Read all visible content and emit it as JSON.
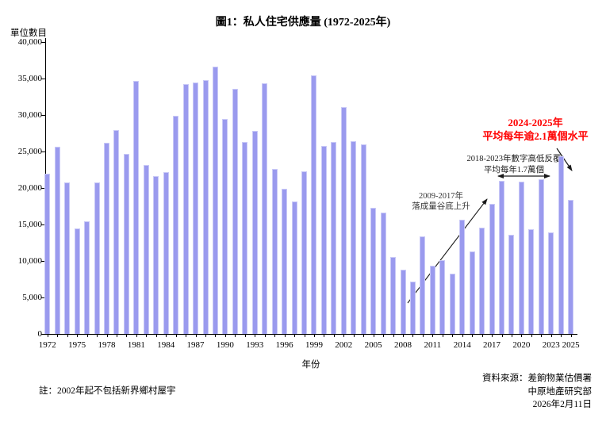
{
  "title": "圖1：私人住宅供應量 (1972-2025年)",
  "y_axis": {
    "label": "單位數目",
    "step": 5000,
    "tick_labels": [
      "0",
      "5,000",
      "10,000",
      "15,000",
      "20,000",
      "25,000",
      "30,000",
      "35,000",
      "40,000"
    ]
  },
  "x_axis": {
    "label": "年份",
    "tick_years": [
      1972,
      1975,
      1978,
      1981,
      1984,
      1987,
      1990,
      1993,
      1996,
      1999,
      2002,
      2005,
      2008,
      2011,
      2014,
      2017,
      2020,
      2023,
      2025
    ]
  },
  "note": "註：2002年起不包括新界鄉村屋宇",
  "source": {
    "line1": "資料來源：差餉物業估價署",
    "line2": "中原地產研究部",
    "line3": "2026年2月11日"
  },
  "annotations": {
    "trough": {
      "line1": "2009-2017年",
      "line2": "落成量谷底上升"
    },
    "fluctuate": {
      "line1": "2018-2023年數字高低反覆",
      "line2": "平均每年1.7萬個"
    },
    "recent": {
      "line1": "2024-2025年",
      "line2": "平均每年逾2.1萬個水平",
      "color": "#ff0000"
    }
  },
  "chart_data": {
    "type": "bar",
    "title": "圖1：私人住宅供應量 (1972-2025年)",
    "xlabel": "年份",
    "ylabel": "單位數目",
    "ylim": [
      0,
      40000
    ],
    "grid": false,
    "legend": "none",
    "bar_color": "#9a9aee",
    "categories": [
      1972,
      1973,
      1974,
      1975,
      1976,
      1977,
      1978,
      1979,
      1980,
      1981,
      1982,
      1983,
      1984,
      1985,
      1986,
      1987,
      1988,
      1989,
      1990,
      1991,
      1992,
      1993,
      1994,
      1995,
      1996,
      1997,
      1998,
      1999,
      2000,
      2001,
      2002,
      2003,
      2004,
      2005,
      2006,
      2007,
      2008,
      2009,
      2010,
      2011,
      2012,
      2013,
      2014,
      2015,
      2016,
      2017,
      2018,
      2019,
      2020,
      2021,
      2022,
      2023,
      2024,
      2025
    ],
    "values": [
      22000,
      25700,
      20800,
      14500,
      15400,
      20800,
      26200,
      27900,
      24700,
      34700,
      23100,
      21600,
      22200,
      29900,
      34200,
      34500,
      34800,
      36600,
      29500,
      33600,
      26300,
      27800,
      34300,
      22600,
      19900,
      18200,
      22300,
      35400,
      25800,
      26300,
      31100,
      26400,
      26000,
      17300,
      16600,
      10500,
      8800,
      7200,
      13400,
      9400,
      10100,
      8300,
      15700,
      11300,
      14600,
      17800,
      21000,
      13600,
      20900,
      14400,
      21200,
      13900,
      24300,
      18400
    ]
  }
}
